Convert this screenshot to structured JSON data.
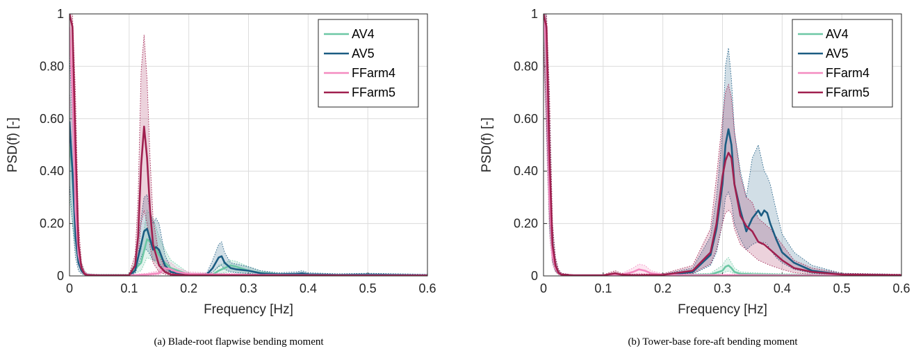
{
  "colors": {
    "AV4": "#6cc7a4",
    "AV5": "#1b5c82",
    "FFarm4": "#f48ac0",
    "FFarm5": "#a0204f"
  },
  "chart_data": [
    {
      "type": "line",
      "caption": "(a) Blade-root flapwise bending moment",
      "xlabel": "Frequency [Hz]",
      "ylabel": "PSD(f) [-]",
      "xlim": [
        0,
        0.6
      ],
      "ylim": [
        0,
        1
      ],
      "xticks": [
        "0",
        "0.1",
        "0.2",
        "0.3",
        "0.4",
        "0.5",
        "0.6"
      ],
      "yticks": [
        "0",
        "0.20",
        "0.40",
        "0.60",
        "0.80",
        "1"
      ],
      "grid": true,
      "legend": "top-right",
      "series": [
        {
          "name": "AV4",
          "color": "#6cc7a4",
          "shaded": true,
          "x": [
            0,
            0.005,
            0.01,
            0.015,
            0.02,
            0.025,
            0.03,
            0.05,
            0.1,
            0.12,
            0.13,
            0.14,
            0.15,
            0.16,
            0.17,
            0.2,
            0.24,
            0.25,
            0.26,
            0.27,
            0.28,
            0.3,
            0.32,
            0.35,
            0.4,
            0.5,
            0.6
          ],
          "y": [
            0.5,
            0.4,
            0.2,
            0.08,
            0.03,
            0.01,
            0.004,
            0.003,
            0.003,
            0.05,
            0.14,
            0.12,
            0.08,
            0.05,
            0.03,
            0.005,
            0.005,
            0.02,
            0.03,
            0.04,
            0.035,
            0.02,
            0.012,
            0.006,
            0.004,
            0.003,
            0.002
          ],
          "lower": [
            0.3,
            0.2,
            0.1,
            0.04,
            0.015,
            0.005,
            0.002,
            0.001,
            0.001,
            0.02,
            0.07,
            0.06,
            0.04,
            0.02,
            0.01,
            0.002,
            0.002,
            0.008,
            0.012,
            0.015,
            0.012,
            0.008,
            0.005,
            0.003,
            0.002,
            0.001,
            0.001
          ],
          "upper": [
            0.7,
            0.6,
            0.3,
            0.12,
            0.05,
            0.02,
            0.008,
            0.006,
            0.006,
            0.1,
            0.25,
            0.22,
            0.15,
            0.1,
            0.06,
            0.01,
            0.01,
            0.04,
            0.05,
            0.06,
            0.055,
            0.035,
            0.02,
            0.01,
            0.008,
            0.006,
            0.004
          ]
        },
        {
          "name": "AV5",
          "color": "#1b5c82",
          "shaded": true,
          "x": [
            0,
            0.005,
            0.01,
            0.015,
            0.02,
            0.025,
            0.03,
            0.05,
            0.1,
            0.11,
            0.12,
            0.125,
            0.13,
            0.135,
            0.14,
            0.145,
            0.15,
            0.16,
            0.17,
            0.2,
            0.23,
            0.24,
            0.25,
            0.255,
            0.26,
            0.27,
            0.28,
            0.3,
            0.32,
            0.35,
            0.38,
            0.39,
            0.4,
            0.45,
            0.5,
            0.55,
            0.6
          ],
          "y": [
            0.59,
            0.4,
            0.15,
            0.05,
            0.02,
            0.008,
            0.004,
            0.002,
            0.002,
            0.02,
            0.12,
            0.17,
            0.18,
            0.14,
            0.1,
            0.11,
            0.1,
            0.04,
            0.015,
            0.003,
            0.005,
            0.03,
            0.07,
            0.075,
            0.05,
            0.03,
            0.025,
            0.02,
            0.01,
            0.006,
            0.008,
            0.01,
            0.006,
            0.004,
            0.005,
            0.004,
            0.003
          ],
          "lower": [
            0.35,
            0.2,
            0.07,
            0.02,
            0.008,
            0.003,
            0.002,
            0.001,
            0.001,
            0.01,
            0.07,
            0.1,
            0.1,
            0.08,
            0.06,
            0.06,
            0.05,
            0.02,
            0.007,
            0.001,
            0.002,
            0.015,
            0.035,
            0.04,
            0.025,
            0.015,
            0.012,
            0.01,
            0.005,
            0.003,
            0.004,
            0.005,
            0.003,
            0.002,
            0.002,
            0.002,
            0.001
          ],
          "upper": [
            0.85,
            0.6,
            0.25,
            0.1,
            0.04,
            0.015,
            0.008,
            0.004,
            0.004,
            0.04,
            0.22,
            0.3,
            0.31,
            0.25,
            0.2,
            0.22,
            0.2,
            0.08,
            0.03,
            0.006,
            0.01,
            0.06,
            0.12,
            0.13,
            0.09,
            0.05,
            0.045,
            0.035,
            0.02,
            0.012,
            0.015,
            0.02,
            0.012,
            0.008,
            0.01,
            0.008,
            0.006
          ]
        },
        {
          "name": "FFarm4",
          "color": "#f48ac0",
          "shaded": true,
          "x": [
            0,
            0.005,
            0.01,
            0.015,
            0.02,
            0.025,
            0.03,
            0.05,
            0.1,
            0.13,
            0.15,
            0.16,
            0.17,
            0.18,
            0.2,
            0.25,
            0.3,
            0.4,
            0.5,
            0.6
          ],
          "y": [
            0.95,
            0.7,
            0.25,
            0.08,
            0.03,
            0.01,
            0.004,
            0.002,
            0.002,
            0.005,
            0.01,
            0.03,
            0.025,
            0.015,
            0.008,
            0.005,
            0.004,
            0.003,
            0.002,
            0.002
          ],
          "lower": [
            0.7,
            0.45,
            0.12,
            0.04,
            0.015,
            0.005,
            0.002,
            0.001,
            0.001,
            0.002,
            0.004,
            0.012,
            0.01,
            0.006,
            0.003,
            0.002,
            0.002,
            0.001,
            0.001,
            0.001
          ],
          "upper": [
            1.0,
            0.95,
            0.4,
            0.14,
            0.05,
            0.02,
            0.008,
            0.004,
            0.004,
            0.01,
            0.02,
            0.06,
            0.05,
            0.03,
            0.015,
            0.01,
            0.008,
            0.006,
            0.004,
            0.004
          ]
        },
        {
          "name": "FFarm5",
          "color": "#a0204f",
          "shaded": true,
          "x": [
            0,
            0.005,
            0.01,
            0.015,
            0.02,
            0.025,
            0.03,
            0.05,
            0.1,
            0.11,
            0.115,
            0.12,
            0.125,
            0.13,
            0.135,
            0.14,
            0.15,
            0.16,
            0.17,
            0.2,
            0.25,
            0.3,
            0.4,
            0.5,
            0.6
          ],
          "y": [
            1.0,
            0.95,
            0.5,
            0.12,
            0.03,
            0.008,
            0.003,
            0.002,
            0.002,
            0.04,
            0.15,
            0.42,
            0.57,
            0.45,
            0.25,
            0.12,
            0.04,
            0.015,
            0.005,
            0.003,
            0.002,
            0.002,
            0.002,
            0.001,
            0.001
          ],
          "lower": [
            0.9,
            0.7,
            0.3,
            0.06,
            0.015,
            0.004,
            0.001,
            0.001,
            0.001,
            0.02,
            0.07,
            0.2,
            0.25,
            0.2,
            0.11,
            0.05,
            0.015,
            0.006,
            0.002,
            0.001,
            0.001,
            0.001,
            0.001,
            0.0005,
            0.0005
          ],
          "upper": [
            1.0,
            1.0,
            0.7,
            0.2,
            0.05,
            0.015,
            0.006,
            0.004,
            0.004,
            0.08,
            0.3,
            0.78,
            0.92,
            0.75,
            0.45,
            0.22,
            0.08,
            0.03,
            0.01,
            0.006,
            0.004,
            0.004,
            0.004,
            0.002,
            0.002
          ]
        }
      ]
    },
    {
      "type": "line",
      "caption": "(b) Tower-base fore-aft bending moment",
      "xlabel": "Frequency [Hz]",
      "ylabel": "PSD(f) [-]",
      "xlim": [
        0,
        0.6
      ],
      "ylim": [
        0,
        1
      ],
      "xticks": [
        "0",
        "0.1",
        "0.2",
        "0.3",
        "0.4",
        "0.5",
        "0.6"
      ],
      "yticks": [
        "0",
        "0.20",
        "0.40",
        "0.60",
        "0.80",
        "1"
      ],
      "grid": true,
      "legend": "top-right",
      "series": [
        {
          "name": "AV4",
          "color": "#6cc7a4",
          "shaded": true,
          "x": [
            0,
            0.005,
            0.01,
            0.015,
            0.02,
            0.025,
            0.03,
            0.05,
            0.1,
            0.15,
            0.2,
            0.28,
            0.3,
            0.305,
            0.31,
            0.315,
            0.32,
            0.33,
            0.35,
            0.4,
            0.5,
            0.6
          ],
          "y": [
            1.0,
            0.9,
            0.35,
            0.1,
            0.03,
            0.01,
            0.004,
            0.002,
            0.002,
            0.003,
            0.002,
            0.005,
            0.02,
            0.035,
            0.04,
            0.03,
            0.015,
            0.008,
            0.006,
            0.004,
            0.002,
            0.002
          ],
          "lower": [
            0.9,
            0.6,
            0.18,
            0.05,
            0.015,
            0.005,
            0.002,
            0.001,
            0.001,
            0.001,
            0.001,
            0.002,
            0.01,
            0.015,
            0.018,
            0.014,
            0.007,
            0.004,
            0.003,
            0.002,
            0.001,
            0.001
          ],
          "upper": [
            1.0,
            1.0,
            0.55,
            0.16,
            0.05,
            0.02,
            0.008,
            0.004,
            0.004,
            0.006,
            0.004,
            0.01,
            0.04,
            0.06,
            0.07,
            0.05,
            0.03,
            0.015,
            0.012,
            0.008,
            0.004,
            0.004
          ]
        },
        {
          "name": "AV5",
          "color": "#1b5c82",
          "shaded": true,
          "x": [
            0,
            0.005,
            0.01,
            0.015,
            0.02,
            0.025,
            0.03,
            0.05,
            0.1,
            0.2,
            0.25,
            0.28,
            0.29,
            0.3,
            0.305,
            0.31,
            0.315,
            0.32,
            0.33,
            0.34,
            0.35,
            0.36,
            0.365,
            0.37,
            0.375,
            0.38,
            0.39,
            0.4,
            0.42,
            0.45,
            0.5,
            0.6
          ],
          "y": [
            1.0,
            0.9,
            0.4,
            0.12,
            0.04,
            0.012,
            0.005,
            0.002,
            0.002,
            0.003,
            0.015,
            0.08,
            0.18,
            0.35,
            0.5,
            0.56,
            0.5,
            0.35,
            0.25,
            0.17,
            0.22,
            0.25,
            0.23,
            0.25,
            0.24,
            0.2,
            0.14,
            0.09,
            0.05,
            0.02,
            0.005,
            0.003
          ],
          "lower": [
            0.85,
            0.55,
            0.2,
            0.06,
            0.02,
            0.006,
            0.002,
            0.001,
            0.001,
            0.001,
            0.007,
            0.04,
            0.09,
            0.2,
            0.3,
            0.32,
            0.28,
            0.2,
            0.14,
            0.1,
            0.12,
            0.13,
            0.12,
            0.13,
            0.12,
            0.1,
            0.07,
            0.05,
            0.025,
            0.01,
            0.002,
            0.001
          ],
          "upper": [
            1.0,
            1.0,
            0.65,
            0.2,
            0.07,
            0.025,
            0.01,
            0.004,
            0.004,
            0.006,
            0.03,
            0.15,
            0.3,
            0.55,
            0.8,
            0.87,
            0.75,
            0.55,
            0.4,
            0.3,
            0.45,
            0.5,
            0.45,
            0.4,
            0.38,
            0.35,
            0.25,
            0.16,
            0.09,
            0.04,
            0.01,
            0.006
          ]
        },
        {
          "name": "FFarm4",
          "color": "#f48ac0",
          "shaded": true,
          "x": [
            0,
            0.005,
            0.01,
            0.015,
            0.02,
            0.025,
            0.03,
            0.05,
            0.1,
            0.13,
            0.15,
            0.16,
            0.17,
            0.18,
            0.2,
            0.25,
            0.3,
            0.35,
            0.4,
            0.5,
            0.6
          ],
          "y": [
            1.0,
            0.85,
            0.3,
            0.08,
            0.03,
            0.01,
            0.004,
            0.002,
            0.002,
            0.004,
            0.015,
            0.025,
            0.02,
            0.01,
            0.004,
            0.003,
            0.003,
            0.003,
            0.002,
            0.002,
            0.002
          ],
          "lower": [
            0.85,
            0.5,
            0.15,
            0.04,
            0.015,
            0.005,
            0.002,
            0.001,
            0.001,
            0.002,
            0.006,
            0.01,
            0.008,
            0.004,
            0.002,
            0.001,
            0.001,
            0.001,
            0.001,
            0.001,
            0.001
          ],
          "upper": [
            1.0,
            1.0,
            0.5,
            0.14,
            0.05,
            0.02,
            0.008,
            0.004,
            0.004,
            0.008,
            0.03,
            0.045,
            0.04,
            0.02,
            0.008,
            0.006,
            0.006,
            0.006,
            0.004,
            0.004,
            0.004
          ]
        },
        {
          "name": "FFarm5",
          "color": "#a0204f",
          "shaded": true,
          "x": [
            0,
            0.005,
            0.01,
            0.015,
            0.02,
            0.025,
            0.03,
            0.05,
            0.1,
            0.12,
            0.13,
            0.15,
            0.2,
            0.25,
            0.28,
            0.29,
            0.3,
            0.305,
            0.31,
            0.315,
            0.32,
            0.33,
            0.34,
            0.35,
            0.36,
            0.37,
            0.38,
            0.4,
            0.42,
            0.45,
            0.5,
            0.6
          ],
          "y": [
            1.0,
            0.95,
            0.45,
            0.12,
            0.04,
            0.012,
            0.005,
            0.002,
            0.002,
            0.01,
            0.005,
            0.003,
            0.004,
            0.02,
            0.09,
            0.2,
            0.38,
            0.44,
            0.47,
            0.45,
            0.35,
            0.23,
            0.19,
            0.17,
            0.13,
            0.12,
            0.1,
            0.06,
            0.03,
            0.015,
            0.005,
            0.003
          ],
          "lower": [
            0.9,
            0.6,
            0.22,
            0.06,
            0.02,
            0.006,
            0.002,
            0.001,
            0.001,
            0.005,
            0.002,
            0.001,
            0.002,
            0.01,
            0.045,
            0.1,
            0.2,
            0.24,
            0.25,
            0.24,
            0.18,
            0.12,
            0.1,
            0.08,
            0.06,
            0.05,
            0.04,
            0.025,
            0.012,
            0.006,
            0.002,
            0.001
          ],
          "upper": [
            1.0,
            1.0,
            0.7,
            0.2,
            0.07,
            0.025,
            0.01,
            0.004,
            0.004,
            0.02,
            0.01,
            0.006,
            0.008,
            0.04,
            0.18,
            0.38,
            0.6,
            0.7,
            0.73,
            0.68,
            0.55,
            0.38,
            0.3,
            0.28,
            0.22,
            0.2,
            0.18,
            0.12,
            0.06,
            0.03,
            0.01,
            0.006
          ]
        }
      ]
    }
  ]
}
